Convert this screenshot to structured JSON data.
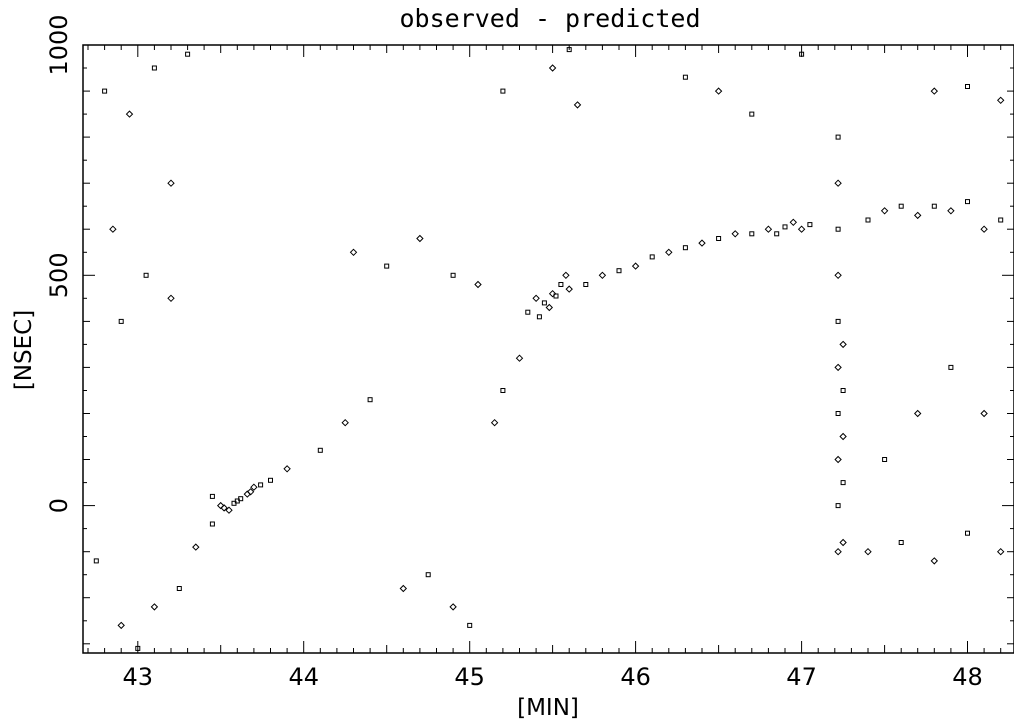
{
  "chart_data": {
    "type": "scatter",
    "title": "observed - predicted",
    "xlabel": "[MIN]",
    "ylabel": "[NSEC]",
    "xlim": [
      42.67,
      48.28
    ],
    "ylim": [
      -320,
      1000
    ],
    "x_ticks": [
      "43",
      "44",
      "45",
      "46",
      "47",
      "48"
    ],
    "x_tick_values": [
      43,
      44,
      45,
      46,
      47,
      48
    ],
    "y_ticks": [
      "0",
      "500",
      "1000"
    ],
    "y_tick_values": [
      0,
      500,
      1000
    ],
    "grid": false,
    "marker_colors": {
      "points": "#000000",
      "axes": "#000000"
    },
    "series": [
      {
        "marker": "mixed-diamond-square",
        "points": [
          [
            42.75,
            -120
          ],
          [
            42.9,
            -260
          ],
          [
            43.0,
            -310
          ],
          [
            43.1,
            -220
          ],
          [
            43.25,
            -180
          ],
          [
            43.35,
            -90
          ],
          [
            43.45,
            -40
          ],
          [
            43.52,
            -5
          ],
          [
            43.6,
            10
          ],
          [
            43.7,
            40
          ],
          [
            43.8,
            55
          ],
          [
            43.9,
            80
          ],
          [
            43.45,
            20
          ],
          [
            43.55,
            -10
          ],
          [
            43.62,
            15
          ],
          [
            43.68,
            30
          ],
          [
            43.74,
            45
          ],
          [
            43.5,
            0
          ],
          [
            43.58,
            5
          ],
          [
            43.66,
            25
          ],
          [
            44.1,
            120
          ],
          [
            44.25,
            180
          ],
          [
            44.4,
            230
          ],
          [
            44.6,
            -180
          ],
          [
            44.75,
            -150
          ],
          [
            44.9,
            -220
          ],
          [
            45.0,
            -260
          ],
          [
            45.15,
            180
          ],
          [
            45.2,
            250
          ],
          [
            45.3,
            320
          ],
          [
            45.35,
            420
          ],
          [
            45.4,
            450
          ],
          [
            45.45,
            440
          ],
          [
            45.5,
            460
          ],
          [
            45.55,
            480
          ],
          [
            45.6,
            470
          ],
          [
            45.42,
            410
          ],
          [
            45.48,
            430
          ],
          [
            45.52,
            455
          ],
          [
            45.58,
            500
          ],
          [
            45.7,
            480
          ],
          [
            45.8,
            500
          ],
          [
            45.9,
            510
          ],
          [
            46.0,
            520
          ],
          [
            46.1,
            540
          ],
          [
            46.2,
            550
          ],
          [
            46.3,
            560
          ],
          [
            46.4,
            570
          ],
          [
            46.5,
            580
          ],
          [
            46.6,
            590
          ],
          [
            46.7,
            590
          ],
          [
            46.8,
            600
          ],
          [
            46.9,
            605
          ],
          [
            47.0,
            600
          ],
          [
            46.85,
            590
          ],
          [
            46.95,
            615
          ],
          [
            47.05,
            610
          ],
          [
            47.22,
            -100
          ],
          [
            47.22,
            0
          ],
          [
            47.22,
            100
          ],
          [
            47.22,
            200
          ],
          [
            47.22,
            300
          ],
          [
            47.22,
            400
          ],
          [
            47.22,
            500
          ],
          [
            47.22,
            600
          ],
          [
            47.22,
            700
          ],
          [
            47.22,
            800
          ],
          [
            47.25,
            -80
          ],
          [
            47.25,
            50
          ],
          [
            47.25,
            150
          ],
          [
            47.25,
            250
          ],
          [
            47.25,
            350
          ],
          [
            47.4,
            620
          ],
          [
            47.5,
            640
          ],
          [
            47.6,
            650
          ],
          [
            47.7,
            630
          ],
          [
            47.8,
            650
          ],
          [
            47.9,
            640
          ],
          [
            48.0,
            660
          ],
          [
            48.1,
            600
          ],
          [
            48.2,
            620
          ],
          [
            47.4,
            -100
          ],
          [
            47.6,
            -80
          ],
          [
            47.8,
            -120
          ],
          [
            48.0,
            -60
          ],
          [
            48.2,
            -100
          ],
          [
            47.5,
            100
          ],
          [
            47.7,
            200
          ],
          [
            47.9,
            300
          ],
          [
            48.1,
            200
          ],
          [
            42.8,
            900
          ],
          [
            42.95,
            850
          ],
          [
            43.1,
            950
          ],
          [
            43.2,
            700
          ],
          [
            43.3,
            980
          ],
          [
            42.85,
            600
          ],
          [
            43.05,
            500
          ],
          [
            43.2,
            450
          ],
          [
            42.9,
            400
          ],
          [
            44.3,
            550
          ],
          [
            44.5,
            520
          ],
          [
            44.7,
            580
          ],
          [
            44.9,
            500
          ],
          [
            45.05,
            480
          ],
          [
            45.2,
            900
          ],
          [
            45.5,
            950
          ],
          [
            45.6,
            990
          ],
          [
            45.65,
            870
          ],
          [
            46.3,
            930
          ],
          [
            46.5,
            900
          ],
          [
            46.7,
            850
          ],
          [
            47.8,
            900
          ],
          [
            48.0,
            910
          ],
          [
            48.2,
            880
          ],
          [
            47.0,
            980
          ]
        ]
      }
    ]
  }
}
